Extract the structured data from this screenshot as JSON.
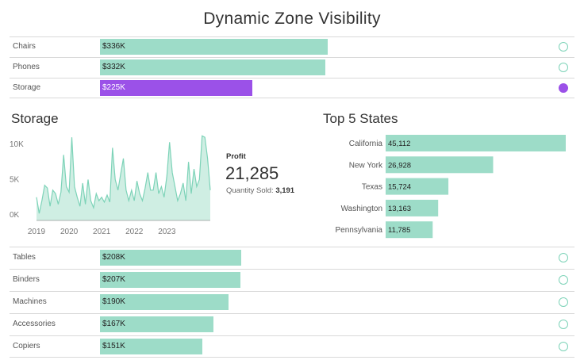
{
  "title": "Dynamic Zone Visibility",
  "colors": {
    "bar": "#9ddcc8",
    "selected": "#9b51e8",
    "area_fill": "#cfeee3",
    "area_line": "#7dd3b8"
  },
  "top_rows": [
    {
      "label": "Chairs",
      "value": 336,
      "display": "$336K",
      "selected": false
    },
    {
      "label": "Phones",
      "value": 332,
      "display": "$332K",
      "selected": false
    },
    {
      "label": "Storage",
      "value": 225,
      "display": "$225K",
      "selected": true
    }
  ],
  "bottom_rows": [
    {
      "label": "Tables",
      "value": 208,
      "display": "$208K",
      "selected": false
    },
    {
      "label": "Binders",
      "value": 207,
      "display": "$207K",
      "selected": false
    },
    {
      "label": "Machines",
      "value": 190,
      "display": "$190K",
      "selected": false
    },
    {
      "label": "Accessories",
      "value": 167,
      "display": "$167K",
      "selected": false
    },
    {
      "label": "Copiers",
      "value": 151,
      "display": "$151K",
      "selected": false
    }
  ],
  "detail": {
    "title": "Storage",
    "kpi": {
      "label": "Profit",
      "value": "21,285",
      "sub_label": "Quantity Sold:",
      "sub_value": "3,191"
    }
  },
  "states_title": "Top 5 States",
  "chart_data": [
    {
      "type": "bar",
      "title": "Dynamic Zone Visibility",
      "orientation": "horizontal",
      "unit": "$K",
      "categories": [
        "Chairs",
        "Phones",
        "Storage",
        "Tables",
        "Binders",
        "Machines",
        "Accessories",
        "Copiers"
      ],
      "values": [
        336,
        332,
        225,
        208,
        207,
        190,
        167,
        151
      ],
      "selected": "Storage"
    },
    {
      "type": "area",
      "title": "Storage",
      "x_start": 2019.0,
      "x_step": 0.0833,
      "y_ticks": [
        0,
        5000,
        10000
      ],
      "y_tick_labels": [
        "0K",
        "5K",
        "10K"
      ],
      "x_ticks": [
        2019,
        2020,
        2021,
        2022,
        2023
      ],
      "x_tick_labels": [
        "2019",
        "2020",
        "2021",
        "2022",
        "2023"
      ],
      "ylim": [
        -800,
        11800
      ],
      "values": [
        2500,
        200,
        2000,
        4200,
        3800,
        1200,
        3500,
        3000,
        1500,
        3200,
        8500,
        4000,
        3200,
        11000,
        4000,
        2500,
        1200,
        4500,
        1500,
        5000,
        2000,
        1000,
        3000,
        2000,
        2500,
        1800,
        2800,
        1800,
        9500,
        5000,
        3500,
        5800,
        8000,
        3500,
        2000,
        3500,
        2000,
        4800,
        3000,
        2000,
        3800,
        6000,
        3500,
        3500,
        6000,
        3000,
        4000,
        2500,
        5500,
        10300,
        6000,
        4000,
        2000,
        3000,
        4500,
        2000,
        7500,
        3000,
        6500,
        4000,
        5000,
        11200,
        11000,
        8000,
        3500
      ]
    },
    {
      "type": "bar",
      "title": "Top 5 States",
      "orientation": "horizontal",
      "categories": [
        "California",
        "New York",
        "Texas",
        "Washington",
        "Pennsylvania"
      ],
      "values": [
        45112,
        26928,
        15724,
        13163,
        11785
      ],
      "value_labels": [
        "45,112",
        "26,928",
        "15,724",
        "13,163",
        "11,785"
      ]
    }
  ]
}
